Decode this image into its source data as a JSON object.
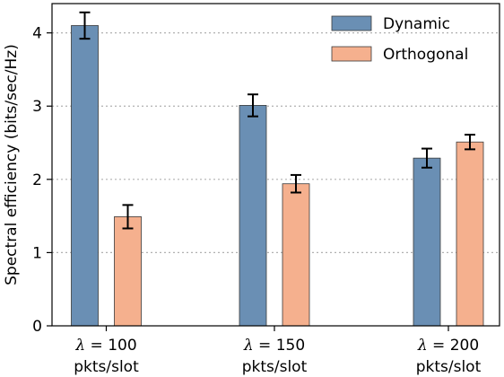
{
  "chart_data": {
    "type": "bar",
    "ylabel": "Spectral efficiency (bits/sec/Hz)",
    "ylim": [
      0,
      4.4
    ],
    "yticks": [
      0,
      1,
      2,
      3,
      4
    ],
    "grid": "horizontal dotted",
    "legend_position": "top-right",
    "categories": [
      {
        "symbol": "λ",
        "op": " = ",
        "value": "100",
        "unit": "pkts/slot"
      },
      {
        "symbol": "λ",
        "op": " = ",
        "value": "150",
        "unit": "pkts/slot"
      },
      {
        "symbol": "λ",
        "op": " = ",
        "value": "200",
        "unit": "pkts/slot"
      }
    ],
    "series": [
      {
        "name": "Dynamic",
        "color": "#6a8fb4",
        "values": [
          4.1,
          3.01,
          2.29
        ],
        "err": [
          0.18,
          0.15,
          0.13
        ]
      },
      {
        "name": "Orthogonal",
        "color": "#f5b08e",
        "values": [
          1.49,
          1.94,
          2.51
        ],
        "err": [
          0.16,
          0.12,
          0.1
        ]
      }
    ]
  }
}
